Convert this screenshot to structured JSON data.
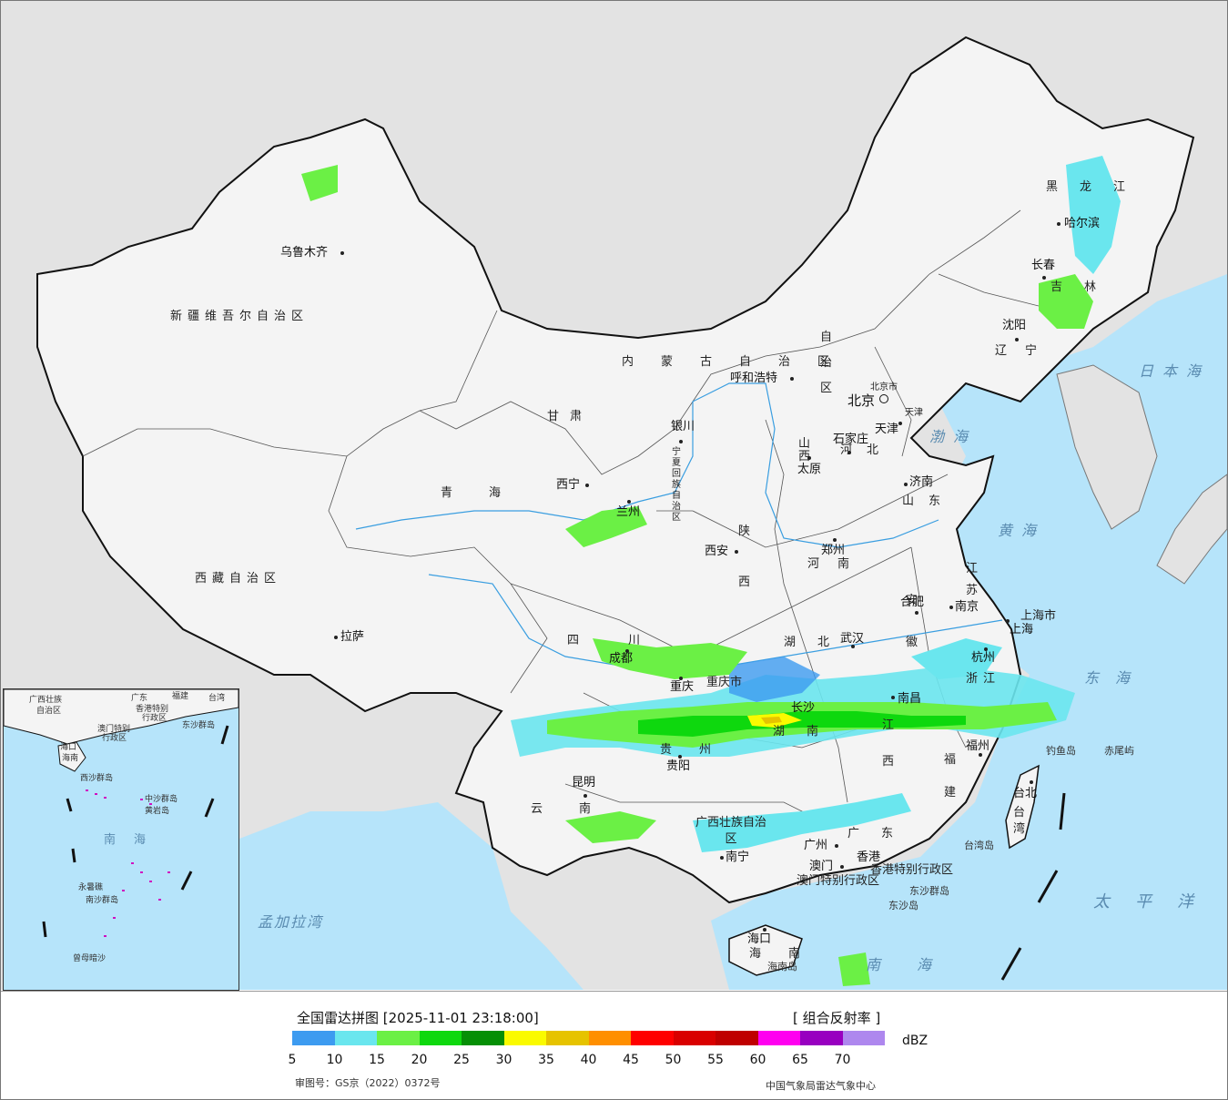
{
  "map": {
    "provinces": [
      {
        "name": "新疆维吾尔自治区"
      },
      {
        "name": "西藏自治区"
      },
      {
        "name": "青海"
      },
      {
        "name": "甘肃"
      },
      {
        "name": "内蒙古自治区"
      },
      {
        "name": "黑龙江"
      },
      {
        "name": "吉林"
      },
      {
        "name": "辽宁"
      },
      {
        "name": "河北"
      },
      {
        "name": "山西"
      },
      {
        "name": "陕西"
      },
      {
        "name": "河南"
      },
      {
        "name": "山东"
      },
      {
        "name": "江苏"
      },
      {
        "name": "安徽"
      },
      {
        "name": "浙江"
      },
      {
        "name": "湖北"
      },
      {
        "name": "湖南"
      },
      {
        "name": "江西"
      },
      {
        "name": "福建"
      },
      {
        "name": "四川"
      },
      {
        "name": "重庆市"
      },
      {
        "name": "贵州"
      },
      {
        "name": "云南"
      },
      {
        "name": "广西壮族自治区"
      },
      {
        "name": "广东"
      },
      {
        "name": "海南"
      },
      {
        "name": "台湾"
      },
      {
        "name": "上海市"
      },
      {
        "name": "天津"
      },
      {
        "name": "北京市"
      },
      {
        "name": "宁夏回族自治区"
      },
      {
        "name": "香港特别行政区"
      },
      {
        "name": "澳门特别行政区"
      }
    ],
    "cities": [
      "乌鲁木齐",
      "拉萨",
      "西宁",
      "兰州",
      "银川",
      "呼和浩特",
      "北京",
      "天津",
      "石家庄",
      "太原",
      "西安",
      "郑州",
      "济南",
      "南京",
      "合肥",
      "上海",
      "杭州",
      "武汉",
      "长沙",
      "南昌",
      "福州",
      "台北",
      "广州",
      "香港",
      "澳门",
      "南宁",
      "海口",
      "贵阳",
      "昆明",
      "成都",
      "重庆",
      "哈尔滨",
      "长春",
      "沈阳"
    ],
    "seas": [
      "日本海",
      "渤海",
      "黄海",
      "东海",
      "太平洋",
      "南海",
      "孟加拉湾"
    ],
    "islands": [
      "钓鱼岛",
      "赤尾屿",
      "台湾岛",
      "东沙群岛",
      "东沙岛",
      "海南岛"
    ]
  },
  "inset": {
    "labels": [
      "广西壮族",
      "自治区",
      "广东",
      "福建",
      "台湾",
      "香港特别",
      "行政区",
      "澳门特别",
      "行政区",
      "东沙群岛",
      "海口",
      "海南",
      "南海",
      "中沙群岛",
      "黄岩岛",
      "永暑礁",
      "南沙群岛",
      "曾母暗沙",
      "西沙群岛"
    ]
  },
  "legend": {
    "title": "全国雷达拼图 [2025-11-01 23:18:00]",
    "product": "[ 组合反射率 ]",
    "unit": "dBZ",
    "approval": "审图号：GS京（2022）0372号",
    "org": "中国气象局雷达气象中心",
    "ticks": [
      "5",
      "10",
      "15",
      "20",
      "25",
      "30",
      "35",
      "40",
      "45",
      "50",
      "55",
      "60",
      "65",
      "70"
    ],
    "colors": [
      "#3d9bf0",
      "#6ae6ee",
      "#6bf045",
      "#0ed80e",
      "#068f06",
      "#fafa00",
      "#e6c300",
      "#ff8f00",
      "#ff0000",
      "#d90000",
      "#bf0000",
      "#ff00f0",
      "#9800c0",
      "#ae87ee"
    ]
  }
}
